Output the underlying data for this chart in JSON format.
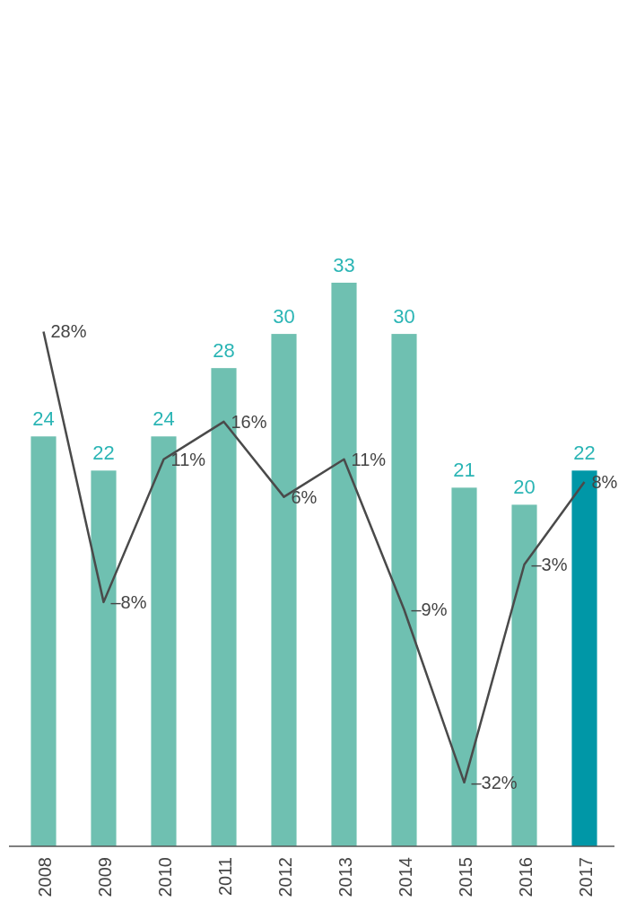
{
  "chart_data": {
    "type": "bar",
    "categories": [
      "2008",
      "2009",
      "2010",
      "2011",
      "2012",
      "2013",
      "2014",
      "2015",
      "2016",
      "2017"
    ],
    "ylim": [
      0,
      33
    ],
    "y2lim": [
      -40.5,
      34.5
    ],
    "tick_labels": "x",
    "series": [
      {
        "colors": [
          "#6fc0b1",
          "#6fc0b1",
          "#6fc0b1",
          "#6fc0b1",
          "#6fc0b1",
          "#6fc0b1",
          "#6fc0b1",
          "#6fc0b1",
          "#6fc0b1",
          "#0097a7"
        ],
        "values": [
          24,
          22,
          24,
          28,
          30,
          33,
          30,
          21,
          20,
          22
        ],
        "value_labels": [
          "24",
          "22",
          "24",
          "28",
          "30",
          "33",
          "30",
          "21",
          "20",
          "22"
        ]
      },
      {
        "type": "line",
        "axis": "y2",
        "color": "#4a4a4a",
        "values": [
          28,
          -8,
          11,
          16,
          6,
          11,
          -9,
          -32,
          -3,
          8
        ],
        "value_labels": [
          "28%",
          "–8%",
          "11%",
          "16%",
          "6%",
          "11%",
          "–9%",
          "–32%",
          "–3%",
          "8%"
        ]
      }
    ]
  }
}
